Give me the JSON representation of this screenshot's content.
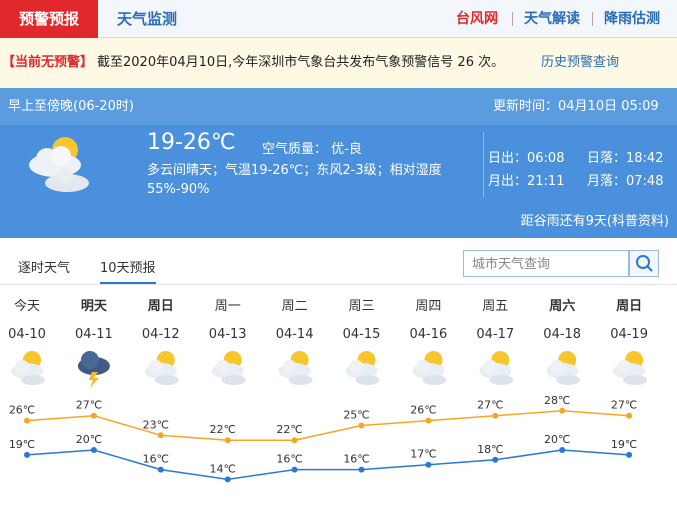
{
  "nav": {
    "tabs": [
      "预警预报",
      "天气监测"
    ],
    "links": [
      "台风网",
      "天气解读",
      "降雨估测"
    ]
  },
  "alert": {
    "status": "【当前无预警】",
    "message": "截至2020年04月10日,今年深圳市气象台共发布气象预警信号 26 次。",
    "link": "历史预警查询"
  },
  "today": {
    "period": "早上至傍晚(06-20时)",
    "updated": "更新时间：04月10日 05:09",
    "temp": "19-26℃",
    "aqi": "空气质量： 优-良",
    "desc": "多云间晴天；气温19-26℃；东风2-3级；相对湿度55%-90%",
    "sunrise": "日出：06:08",
    "sunset": "日落：18:42",
    "moonrise": "月出：21:11",
    "moonset": "月落：07:48",
    "countdown": "距谷雨还有9天(科普资料)"
  },
  "forecast": {
    "tabs": [
      "逐时天气",
      "10天预报"
    ],
    "search_placeholder": "城市天气查询",
    "weekdays": [
      "今天",
      "明天",
      "周日",
      "周一",
      "周二",
      "周三",
      "周四",
      "周五",
      "周六",
      "周日"
    ],
    "dates": [
      "04-10",
      "04-11",
      "04-12",
      "04-13",
      "04-14",
      "04-15",
      "04-16",
      "04-17",
      "04-18",
      "04-19"
    ],
    "highs": {
      "color": "#f5a623",
      "values": [
        26,
        27,
        23,
        22,
        22,
        25,
        26,
        27,
        28,
        27
      ],
      "value_labels": [
        "26℃",
        "27℃",
        "23℃",
        "22℃",
        "22℃",
        "25℃",
        "26℃",
        "27℃",
        "28℃",
        "27℃"
      ]
    },
    "lows": {
      "color": "#2a78d2",
      "values": [
        19,
        20,
        16,
        14,
        16,
        16,
        17,
        18,
        20,
        19
      ],
      "value_labels": [
        "19℃",
        "20℃",
        "16℃",
        "14℃",
        "16℃",
        "16℃",
        "17℃",
        "18℃",
        "20℃",
        "19℃"
      ]
    }
  }
}
